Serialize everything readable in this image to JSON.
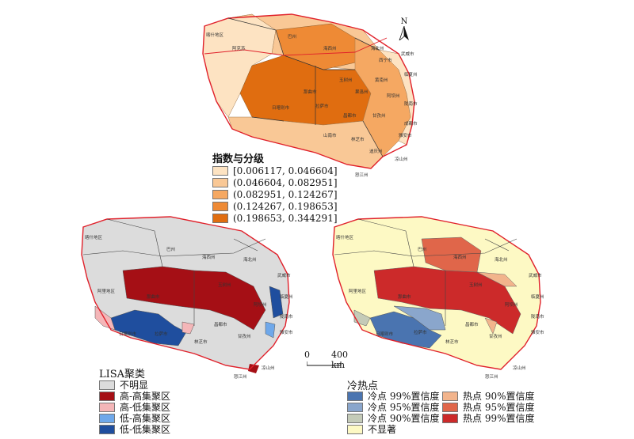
{
  "north_label": "N",
  "index_legend": {
    "title": "指数与分级",
    "items": [
      {
        "label": "[0.006117, 0.046604]",
        "color": "#fde3c2"
      },
      {
        "label": "(0.046604, 0.082951]",
        "color": "#f9c896"
      },
      {
        "label": "(0.082951, 0.124267]",
        "color": "#f5a862"
      },
      {
        "label": "(0.124267, 0.198653]",
        "color": "#ee8a35"
      },
      {
        "label": "(0.198653, 0.344291]",
        "color": "#e06d10"
      }
    ]
  },
  "lisa_legend": {
    "title": "LISA聚类",
    "items": [
      {
        "label": "不明显",
        "color": "#dcdcdc"
      },
      {
        "label": "高-高集聚区",
        "color": "#a50f15"
      },
      {
        "label": "高-低集聚区",
        "color": "#f4b6b8"
      },
      {
        "label": "低-高集聚区",
        "color": "#6fa8ea"
      },
      {
        "label": "低-低集聚区",
        "color": "#1f4e9e"
      }
    ]
  },
  "hotspot_legend": {
    "title": "冷热点",
    "col1": [
      {
        "label": "冷点 99%置信度",
        "color": "#4a74b0"
      },
      {
        "label": "冷点 95%置信度",
        "color": "#8aa6cc"
      },
      {
        "label": "冷点 90%置信度",
        "color": "#c4cbb8"
      },
      {
        "label": "不显著",
        "color": "#fdf9c4"
      }
    ],
    "col2": [
      {
        "label": "热点 90%置信度",
        "color": "#f2b48c"
      },
      {
        "label": "热点 95%置信度",
        "color": "#e0664a"
      },
      {
        "label": "热点 99%置信度",
        "color": "#cc2a2a"
      }
    ]
  },
  "scale": {
    "zero": "0",
    "dist": "400 km"
  },
  "top_map_labels": [
    "喀什地区",
    "阿克苏",
    "巴州",
    "海西州",
    "玉树州",
    "那曲市",
    "拉萨市",
    "日喀则市",
    "林芝市",
    "甘孜州",
    "阿坝州",
    "西宁市",
    "海北州",
    "武威市",
    "临夏州",
    "陇南市",
    "成都市",
    "雅安市",
    "凉山州",
    "怒江州",
    "果洛州",
    "黄南州",
    "昌都市",
    "山南市",
    "迪庆州"
  ],
  "lisa_map_labels": [
    "喀什地区",
    "巴州",
    "海西州",
    "玉树州",
    "那曲市",
    "阿里地区",
    "日喀则市",
    "拉萨市",
    "林芝市",
    "昌都市",
    "甘孜州",
    "阿坝州",
    "武威市",
    "临夏州",
    "陇南市",
    "雅安市",
    "凉山州",
    "怒江州",
    "海北州"
  ],
  "hot_map_labels": [
    "喀什地区",
    "巴州",
    "海西州",
    "玉树州",
    "那曲市",
    "阿里地区",
    "日喀则市",
    "拉萨市",
    "林芝市",
    "昌都市",
    "甘孜州",
    "阿坝州",
    "武威市",
    "临夏州",
    "陇南市",
    "雅安市",
    "凉山州",
    "怒江州",
    "海北州"
  ]
}
